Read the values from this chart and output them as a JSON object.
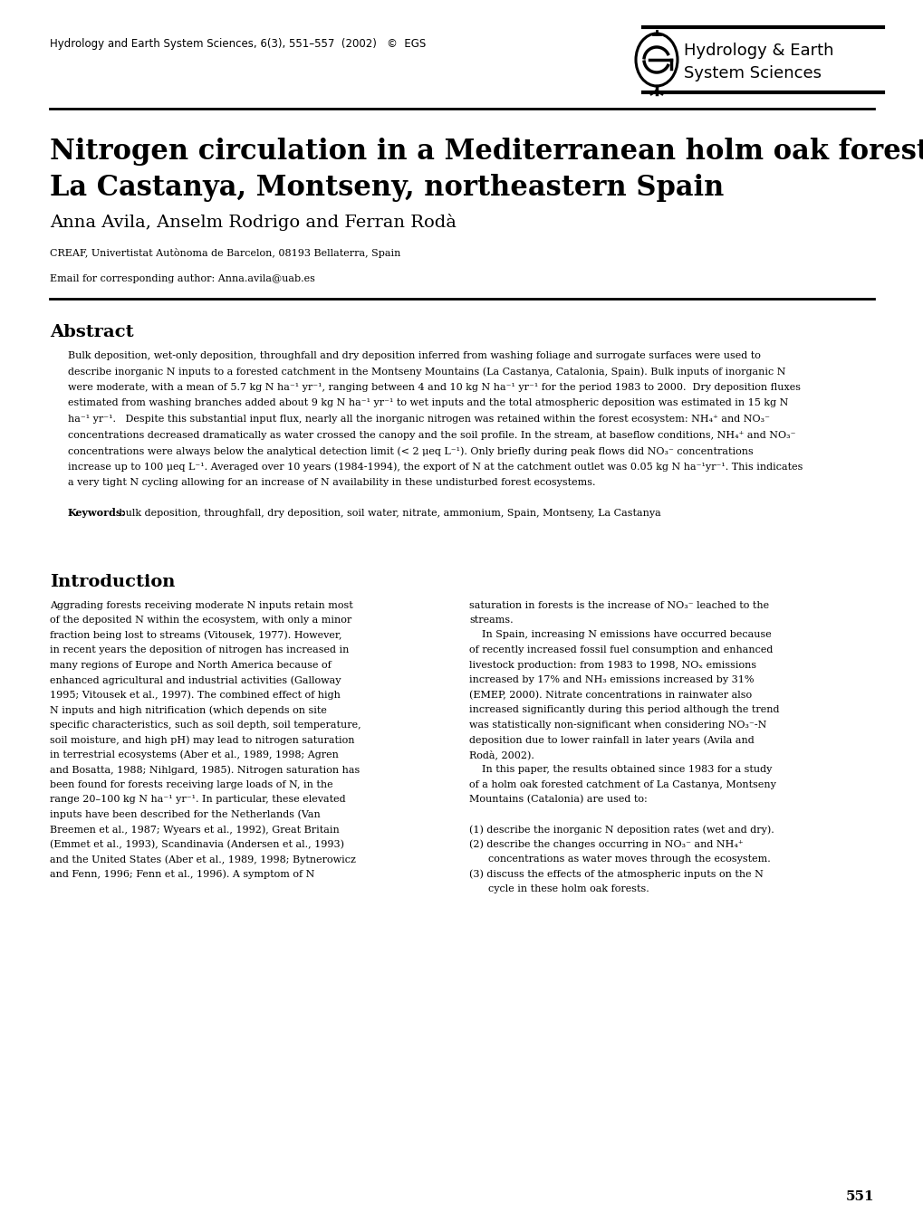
{
  "journal_header": "Hydrology and Earth System Sciences, 6(3), 551–557  (2002)   ©  EGS",
  "journal_logo_text1": "Hydrology & Earth",
  "journal_logo_text2": "System Sciences",
  "title_line1": "Nitrogen circulation in a Mediterranean holm oak forest,",
  "title_line2": "La Castanya, Montseny, northeastern Spain",
  "authors": "Anna Avila, Anselm Rodrigo and Ferran Rodà",
  "affiliation": "CREAF, Univertistat Autònoma de Barcelon, 08193 Bellaterra, Spain",
  "email": "Email for corresponding author: Anna.avila@uab.es",
  "abstract_title": "Abstract",
  "keywords_label": "Keywords:",
  "keywords_text": " bulk deposition, throughfall, dry deposition, soil water, nitrate, ammonium, Spain, Montseny, La Castanya",
  "intro_title": "Introduction",
  "page_number": "551",
  "bg_color": "#ffffff",
  "text_color": "#000000",
  "header_fontsize": 8.5,
  "title_fontsize": 22,
  "authors_fontsize": 14,
  "affil_fontsize": 8,
  "abstract_title_fontsize": 14,
  "body_fontsize": 8,
  "intro_title_fontsize": 14,
  "abstract_lines": [
    "Bulk deposition, wet-only deposition, throughfall and dry deposition inferred from washing foliage and surrogate surfaces were used to",
    "describe inorganic N inputs to a forested catchment in the Montseny Mountains (La Castanya, Catalonia, Spain). Bulk inputs of inorganic N",
    "were moderate, with a mean of 5.7 kg N ha⁻¹ yr⁻¹, ranging between 4 and 10 kg N ha⁻¹ yr⁻¹ for the period 1983 to 2000.  Dry deposition fluxes",
    "estimated from washing branches added about 9 kg N ha⁻¹ yr⁻¹ to wet inputs and the total atmospheric deposition was estimated in 15 kg N",
    "ha⁻¹ yr⁻¹.   Despite this substantial input flux, nearly all the inorganic nitrogen was retained within the forest ecosystem: NH₄⁺ and NO₃⁻",
    "concentrations decreased dramatically as water crossed the canopy and the soil profile. In the stream, at baseflow conditions, NH₄⁺ and NO₃⁻",
    "concentrations were always below the analytical detection limit (< 2 μeq L⁻¹). Only briefly during peak flows did NO₃⁻ concentrations",
    "increase up to 100 μeq L⁻¹. Averaged over 10 years (1984-1994), the export of N at the catchment outlet was 0.05 kg N ha⁻¹yr⁻¹. This indicates",
    "a very tight N cycling allowing for an increase of N availability in these undisturbed forest ecosystems."
  ],
  "intro_col1_lines": [
    "Aggrading forests receiving moderate N inputs retain most",
    "of the deposited N within the ecosystem, with only a minor",
    "fraction being lost to streams (Vitousek, 1977). However,",
    "in recent years the deposition of nitrogen has increased in",
    "many regions of Europe and North America because of",
    "enhanced agricultural and industrial activities (Galloway",
    "1995; Vitousek et al., 1997). The combined effect of high",
    "N inputs and high nitrification (which depends on site",
    "specific characteristics, such as soil depth, soil temperature,",
    "soil moisture, and high pH) may lead to nitrogen saturation",
    "in terrestrial ecosystems (Aber et al., 1989, 1998; Agren",
    "and Bosatta, 1988; Nihlgard, 1985). Nitrogen saturation has",
    "been found for forests receiving large loads of N, in the",
    "range 20–100 kg N ha⁻¹ yr⁻¹. In particular, these elevated",
    "inputs have been described for the Netherlands (Van",
    "Breemen et al., 1987; Wyears et al., 1992), Great Britain",
    "(Emmet et al., 1993), Scandinavia (Andersen et al., 1993)",
    "and the United States (Aber et al., 1989, 1998; Bytnerowicz",
    "and Fenn, 1996; Fenn et al., 1996). A symptom of N"
  ],
  "intro_col2_lines": [
    "saturation in forests is the increase of NO₃⁻ leached to the",
    "streams.",
    "    In Spain, increasing N emissions have occurred because",
    "of recently increased fossil fuel consumption and enhanced",
    "livestock production: from 1983 to 1998, NOₓ emissions",
    "increased by 17% and NH₃ emissions increased by 31%",
    "(EMEP, 2000). Nitrate concentrations in rainwater also",
    "increased significantly during this period although the trend",
    "was statistically non-significant when considering NO₃⁻-N",
    "deposition due to lower rainfall in later years (Avila and",
    "Rodà, 2002).",
    "    In this paper, the results obtained since 1983 for a study",
    "of a holm oak forested catchment of La Castanya, Montseny",
    "Mountains (Catalonia) are used to:",
    "",
    "(1) describe the inorganic N deposition rates (wet and dry).",
    "(2) describe the changes occurring in NO₃⁻ and NH₄⁺",
    "      concentrations as water moves through the ecosystem.",
    "(3) discuss the effects of the atmospheric inputs on the N",
    "      cycle in these holm oak forests."
  ]
}
